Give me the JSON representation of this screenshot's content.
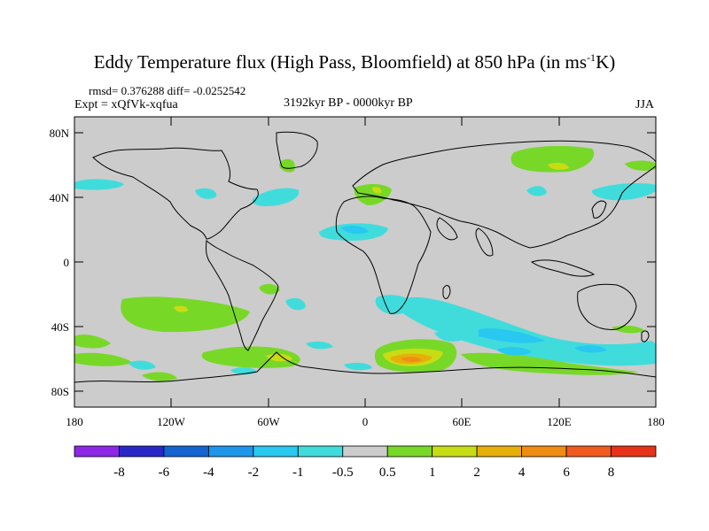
{
  "title": {
    "main": "Eddy Temperature flux (High Pass, Bloomfield) at 850 hPa (in ms",
    "superscript": "-1",
    "end": "K)"
  },
  "stats": "rmsd= 0.376288 diff= -0.0252542",
  "experiment": "Expt = xQfVk-xqfua",
  "period": "3192kyr BP - 0000kyr BP",
  "season": "JJA",
  "axes": {
    "lat_labels": [
      "80N",
      "40N",
      "0",
      "40S",
      "80S"
    ],
    "lon_labels": [
      "180",
      "120W",
      "60W",
      "0",
      "60E",
      "120E",
      "180"
    ]
  },
  "colorbar": {
    "colors": [
      "#8c28e6",
      "#2828c8",
      "#1464d2",
      "#1e96eb",
      "#28c8f0",
      "#40dcdc",
      "#cccccc",
      "#78d828",
      "#c8dc14",
      "#e6af0a",
      "#f08c14",
      "#f05a1e",
      "#e63219"
    ],
    "labels": [
      "-8",
      "-6",
      "-4",
      "-2",
      "-1",
      "-0.5",
      "0.5",
      "1",
      "2",
      "4",
      "6",
      "8"
    ]
  },
  "colors": {
    "land_bg": "#cccccc",
    "coast": "#000000"
  }
}
